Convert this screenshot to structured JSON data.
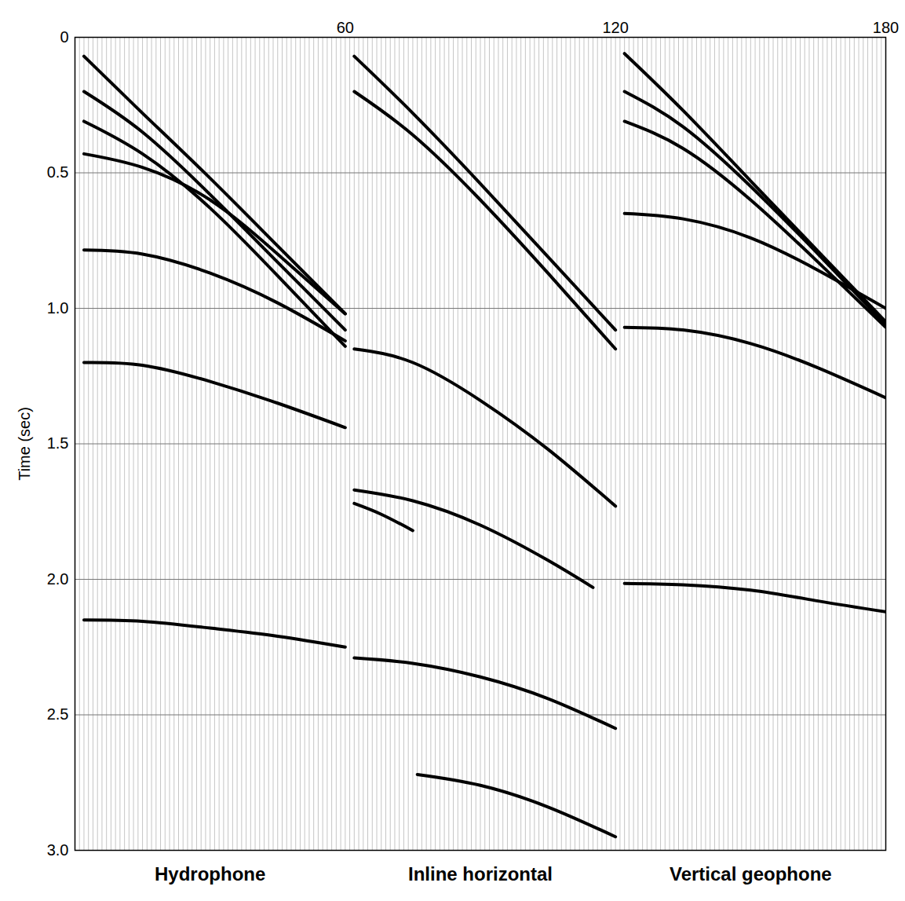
{
  "chart_data": {
    "type": "line",
    "xlim": [
      0,
      180
    ],
    "xticks": [
      60,
      120,
      180
    ],
    "ylim": [
      0,
      3
    ],
    "yticks": [
      0,
      0.5,
      {
        "value": 1,
        "label": "1.0"
      },
      1.5,
      {
        "value": 2,
        "label": "2.0"
      },
      2.5,
      {
        "value": 3,
        "label": "3.0"
      }
    ],
    "ylabel": "Time (sec)",
    "grid": true,
    "panels": [
      {
        "label": "Hydrophone",
        "range": [
          0,
          60
        ]
      },
      {
        "label": "Inline horizontal",
        "range": [
          60,
          120
        ]
      },
      {
        "label": "Vertical geophone",
        "range": [
          120,
          180
        ]
      }
    ],
    "series": [
      {
        "color": "#000000",
        "x": [
          2,
          15,
          30,
          45,
          60
        ],
        "values": [
          0.07,
          0.28,
          0.52,
          0.77,
          1.02
        ]
      },
      {
        "color": "#000000",
        "x": [
          2,
          15,
          30,
          45,
          60
        ],
        "values": [
          0.2,
          0.35,
          0.58,
          0.83,
          1.08
        ]
      },
      {
        "color": "#000000",
        "x": [
          2,
          15,
          30,
          45,
          60
        ],
        "values": [
          0.31,
          0.43,
          0.63,
          0.88,
          1.14
        ]
      },
      {
        "color": "#000000",
        "x": [
          2,
          15,
          30,
          45,
          60
        ],
        "values": [
          0.43,
          0.48,
          0.6,
          0.8,
          1.02
        ]
      },
      {
        "color": "#000000",
        "x": [
          2,
          15,
          30,
          45,
          60
        ],
        "values": [
          0.785,
          0.8,
          0.87,
          0.98,
          1.12
        ]
      },
      {
        "color": "#000000",
        "x": [
          2,
          15,
          30,
          45,
          60
        ],
        "values": [
          1.2,
          1.21,
          1.27,
          1.35,
          1.44
        ]
      },
      {
        "color": "#000000",
        "x": [
          2,
          15,
          30,
          45,
          60
        ],
        "values": [
          2.15,
          2.155,
          2.18,
          2.21,
          2.25
        ]
      },
      {
        "color": "#000000",
        "x": [
          62,
          75,
          90,
          105,
          120
        ],
        "values": [
          0.07,
          0.28,
          0.54,
          0.81,
          1.08
        ]
      },
      {
        "color": "#000000",
        "x": [
          62,
          75,
          90,
          105,
          120
        ],
        "values": [
          0.2,
          0.36,
          0.6,
          0.87,
          1.15
        ]
      },
      {
        "color": "#000000",
        "x": [
          62,
          75,
          90,
          105,
          120
        ],
        "values": [
          1.15,
          1.2,
          1.34,
          1.52,
          1.73
        ]
      },
      {
        "color": "#000000",
        "x": [
          62,
          75,
          90,
          105,
          115
        ],
        "values": [
          1.67,
          1.71,
          1.8,
          1.93,
          2.03
        ]
      },
      {
        "color": "#000000",
        "x": [
          62,
          68,
          75
        ],
        "values": [
          1.72,
          1.76,
          1.82
        ]
      },
      {
        "color": "#000000",
        "x": [
          62,
          75,
          90,
          105,
          120
        ],
        "values": [
          2.29,
          2.31,
          2.36,
          2.44,
          2.55
        ]
      },
      {
        "color": "#000000",
        "x": [
          76,
          90,
          105,
          120
        ],
        "values": [
          2.72,
          2.76,
          2.84,
          2.95
        ]
      },
      {
        "color": "#000000",
        "x": [
          122,
          135,
          150,
          165,
          180
        ],
        "values": [
          0.06,
          0.27,
          0.53,
          0.79,
          1.05
        ]
      },
      {
        "color": "#000000",
        "x": [
          122,
          135,
          150,
          165,
          180
        ],
        "values": [
          0.2,
          0.33,
          0.55,
          0.8,
          1.06
        ]
      },
      {
        "color": "#000000",
        "x": [
          122,
          135,
          150,
          165,
          180
        ],
        "values": [
          0.31,
          0.41,
          0.6,
          0.83,
          1.07
        ]
      },
      {
        "color": "#000000",
        "x": [
          122,
          135,
          150,
          165,
          180
        ],
        "values": [
          0.65,
          0.67,
          0.74,
          0.86,
          1.0
        ]
      },
      {
        "color": "#000000",
        "x": [
          122,
          135,
          150,
          165,
          180
        ],
        "values": [
          1.07,
          1.08,
          1.13,
          1.22,
          1.33
        ]
      },
      {
        "color": "#000000",
        "x": [
          122,
          135,
          150,
          165,
          180
        ],
        "values": [
          2.015,
          2.02,
          2.04,
          2.08,
          2.12
        ]
      }
    ]
  }
}
